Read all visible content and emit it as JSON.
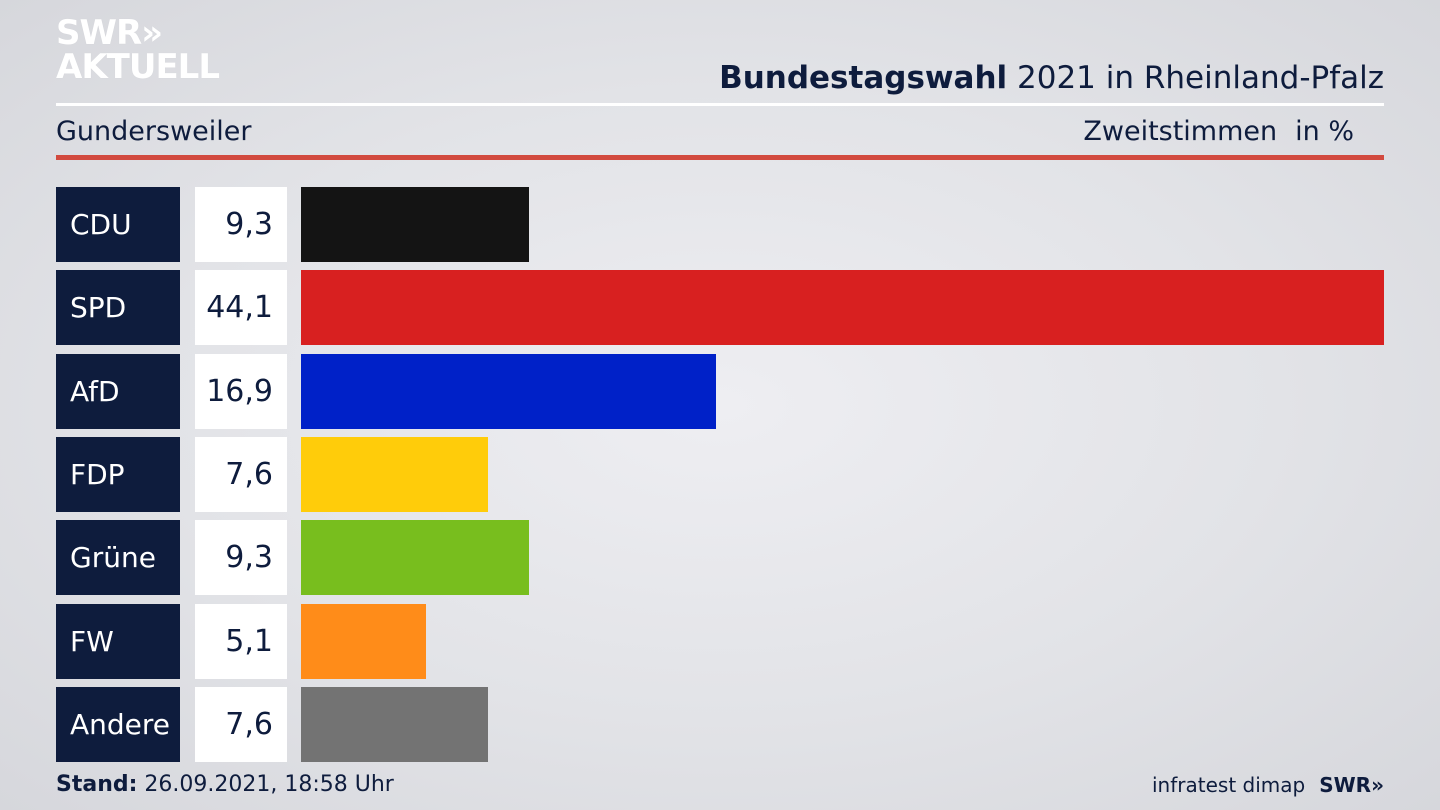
{
  "brand": {
    "line1": "SWR",
    "line1_chevrons": "»",
    "line2": "AKTUELL"
  },
  "header": {
    "title_bold": "Bundestagswahl",
    "title_rest": " 2021 in Rheinland-Pfalz",
    "region": "Gundersweiler",
    "measure": "Zweitstimmen",
    "unit": "in %"
  },
  "footer": {
    "stand_label": "Stand:",
    "stand_value": " 26.09.2021, 18:58 Uhr",
    "source": "infratest dimap",
    "mini_logo": "SWR»"
  },
  "colors": {
    "label_bg": "#0e1c3d",
    "red_rule": "#d24a3f",
    "CDU": "#141414",
    "SPD": "#d82020",
    "AfD": "#0021c8",
    "FDP": "#ffcc0a",
    "Grüne": "#78be1e",
    "FW": "#ff8c19",
    "Andere": "#737373"
  },
  "chart_data": {
    "type": "bar",
    "orientation": "horizontal",
    "categories": [
      "CDU",
      "SPD",
      "AfD",
      "FDP",
      "Grüne",
      "FW",
      "Andere"
    ],
    "values": [
      9.3,
      44.1,
      16.9,
      7.6,
      9.3,
      5.1,
      7.6
    ],
    "value_labels": [
      "9,3",
      "44,1",
      "16,9",
      "7,6",
      "9,3",
      "5,1",
      "7,6"
    ],
    "xlim": [
      0,
      44.1
    ],
    "grid": false,
    "legend": "none"
  }
}
